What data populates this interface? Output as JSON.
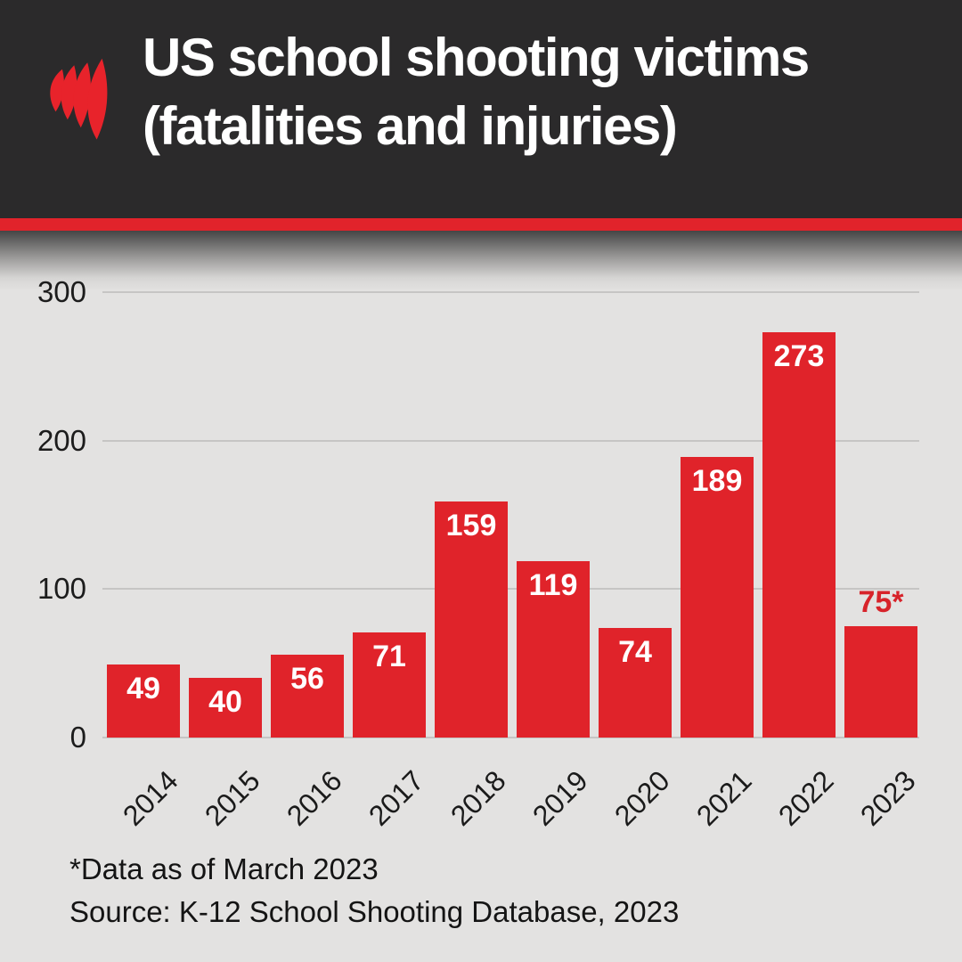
{
  "header": {
    "title_line1": "US school shooting victims",
    "title_line2": "(fatalities and injuries)",
    "logo_name": "sbs-logo"
  },
  "colors": {
    "header_bg": "#2b2a2b",
    "brand_red": "#e1232b",
    "bar_red": "#e0232a",
    "chart_bg": "#e3e2e1",
    "gridline": "#c6c5c4",
    "value_label_inside": "#ffffff",
    "value_label_outside": "#d7232a",
    "axis_text": "#1c1c1c"
  },
  "chart_data": {
    "type": "bar",
    "title": "US school shooting victims (fatalities and injuries)",
    "categories": [
      "2014",
      "2015",
      "2016",
      "2017",
      "2018",
      "2019",
      "2020",
      "2021",
      "2022",
      "2023"
    ],
    "values": [
      49,
      40,
      56,
      71,
      159,
      119,
      74,
      189,
      273,
      75
    ],
    "bar_labels": [
      "49",
      "40",
      "56",
      "71",
      "159",
      "119",
      "74",
      "189",
      "273",
      "75*"
    ],
    "xlabel": "",
    "ylabel": "",
    "ylim": [
      0,
      300
    ],
    "yticks": [
      0,
      100,
      200,
      300
    ],
    "grid": true,
    "legend": false
  },
  "footer": {
    "note": "*Data as of March 2023",
    "source": "Source: K-12 School Shooting Database, 2023"
  }
}
